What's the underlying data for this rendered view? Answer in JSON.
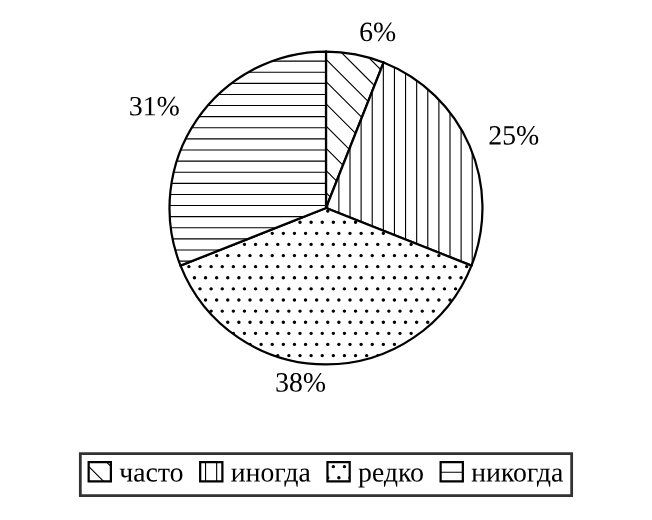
{
  "chart_data": {
    "type": "pie",
    "categories": [
      "часто",
      "иногда",
      "редко",
      "никогда"
    ],
    "values": [
      6,
      25,
      38,
      31
    ],
    "colors": [
      "#ffffff",
      "#ffffff",
      "#ffffff",
      "#ffffff"
    ],
    "value_labels": [
      "6%",
      "25%",
      "38%",
      "31%"
    ],
    "legend": "bottom"
  }
}
